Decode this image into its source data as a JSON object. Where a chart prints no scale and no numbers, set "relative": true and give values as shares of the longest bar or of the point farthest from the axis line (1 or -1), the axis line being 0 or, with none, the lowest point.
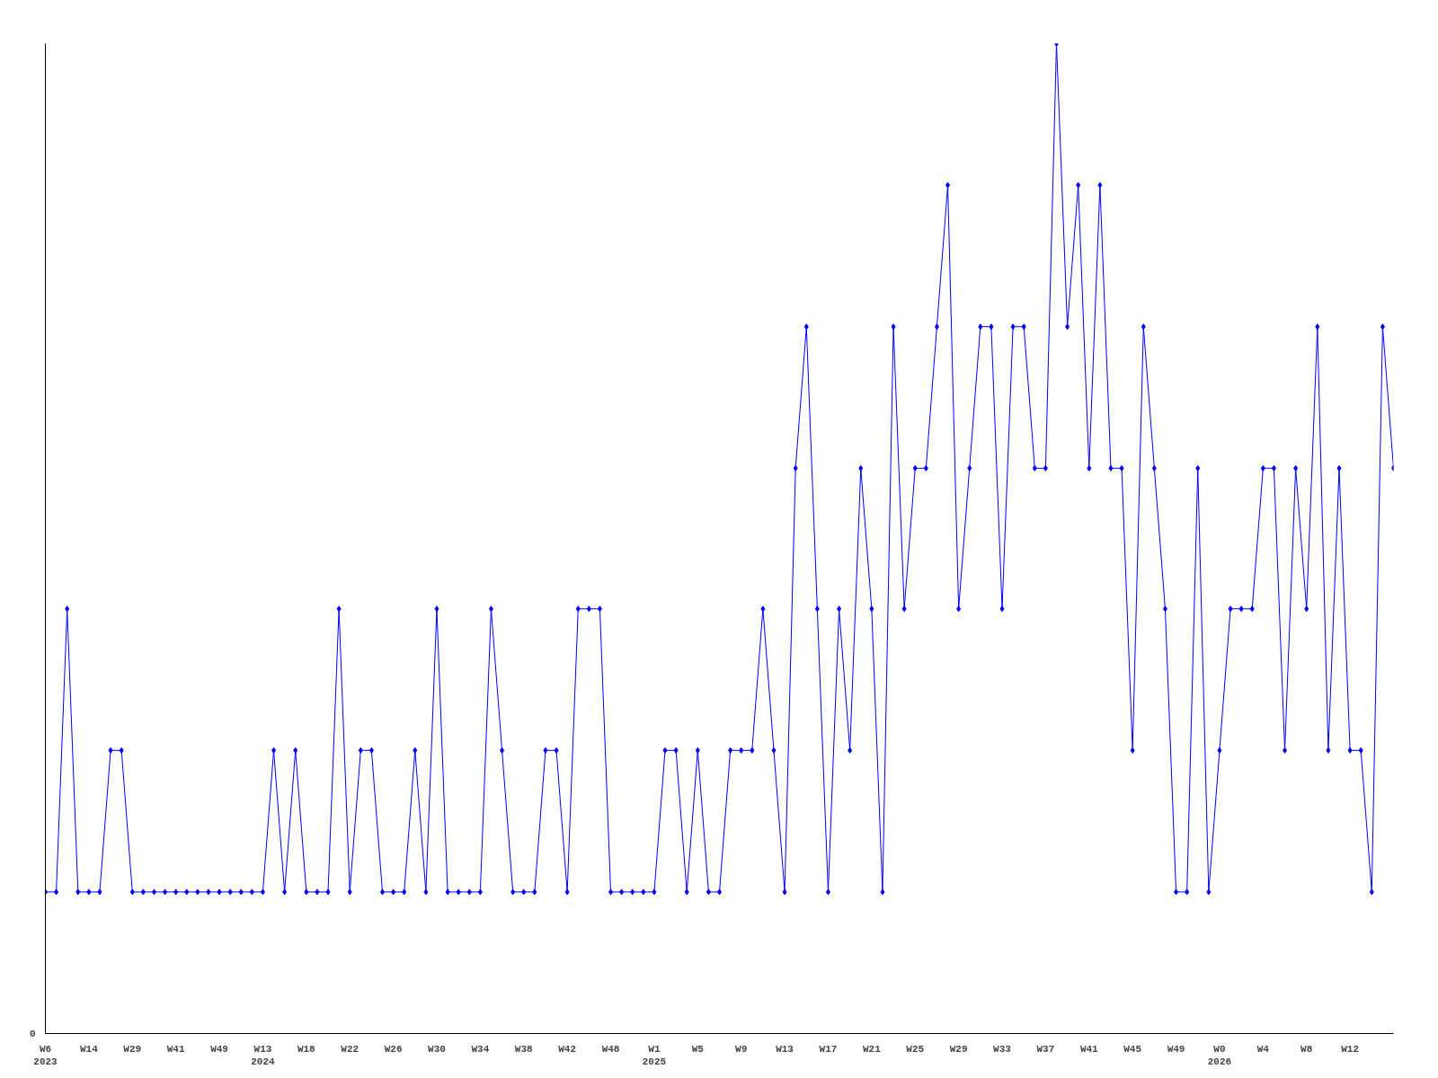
{
  "chart_data": {
    "type": "line",
    "relative": true,
    "marker": "diamond",
    "grid": false,
    "annotations": [
      "0"
    ],
    "categories": [
      "W6\n2023",
      null,
      null,
      null,
      "W14",
      null,
      null,
      null,
      "W29",
      null,
      null,
      null,
      "W41",
      null,
      null,
      null,
      "W49",
      null,
      null,
      null,
      "W13\n2024",
      null,
      null,
      null,
      "W18",
      null,
      null,
      null,
      "W22",
      null,
      null,
      null,
      "W26",
      null,
      null,
      null,
      "W30",
      null,
      null,
      null,
      "W34",
      null,
      null,
      null,
      "W38",
      null,
      null,
      null,
      "W42",
      null,
      null,
      null,
      "W48",
      null,
      null,
      null,
      "W1\n2025",
      null,
      null,
      null,
      "W5",
      null,
      null,
      null,
      "W9",
      null,
      null,
      null,
      "W13",
      null,
      null,
      null,
      "W17",
      null,
      null,
      null,
      "W21",
      null,
      null,
      null,
      "W25",
      null,
      null,
      null,
      "W29",
      null,
      null,
      null,
      "W33",
      null,
      null,
      null,
      "W37",
      null,
      null,
      null,
      "W41",
      null,
      null,
      null,
      "W45",
      null,
      null,
      null,
      "W49",
      null,
      null,
      null,
      "W0\n2026",
      null,
      null,
      null,
      "W4",
      null,
      null,
      null,
      "W8",
      null,
      null,
      null,
      "W12",
      null,
      null,
      null,
      null
    ],
    "series": [
      {
        "color": "#0000ff",
        "values": [
          0.143,
          0.143,
          0.429,
          0.143,
          0.143,
          0.143,
          0.286,
          0.286,
          0.143,
          0.143,
          0.143,
          0.143,
          0.143,
          0.143,
          0.143,
          0.143,
          0.143,
          0.143,
          0.143,
          0.143,
          0.143,
          0.286,
          0.143,
          0.286,
          0.143,
          0.143,
          0.143,
          0.429,
          0.143,
          0.286,
          0.286,
          0.143,
          0.143,
          0.143,
          0.286,
          0.143,
          0.429,
          0.143,
          0.143,
          0.143,
          0.143,
          0.429,
          0.286,
          0.143,
          0.143,
          0.143,
          0.286,
          0.286,
          0.143,
          0.429,
          0.429,
          0.429,
          0.143,
          0.143,
          0.143,
          0.143,
          0.143,
          0.286,
          0.286,
          0.143,
          0.286,
          0.143,
          0.143,
          0.286,
          0.286,
          0.286,
          0.429,
          0.286,
          0.143,
          0.571,
          0.714,
          0.429,
          0.143,
          0.429,
          0.286,
          0.571,
          0.429,
          0.143,
          0.714,
          0.429,
          0.571,
          0.571,
          0.714,
          0.857,
          0.429,
          0.571,
          0.714,
          0.714,
          0.429,
          0.714,
          0.714,
          0.571,
          0.571,
          1,
          0.714,
          0.857,
          0.571,
          0.857,
          0.571,
          0.571,
          0.286,
          0.714,
          0.571,
          0.429,
          0.143,
          0.143,
          0.571,
          0.143,
          0.286,
          0.429,
          0.429,
          0.429,
          0.571,
          0.571,
          0.286,
          0.571,
          0.429,
          0.714,
          0.286,
          0.571,
          0.286,
          0.286,
          0.143,
          0.714,
          0.571
        ]
      }
    ]
  }
}
